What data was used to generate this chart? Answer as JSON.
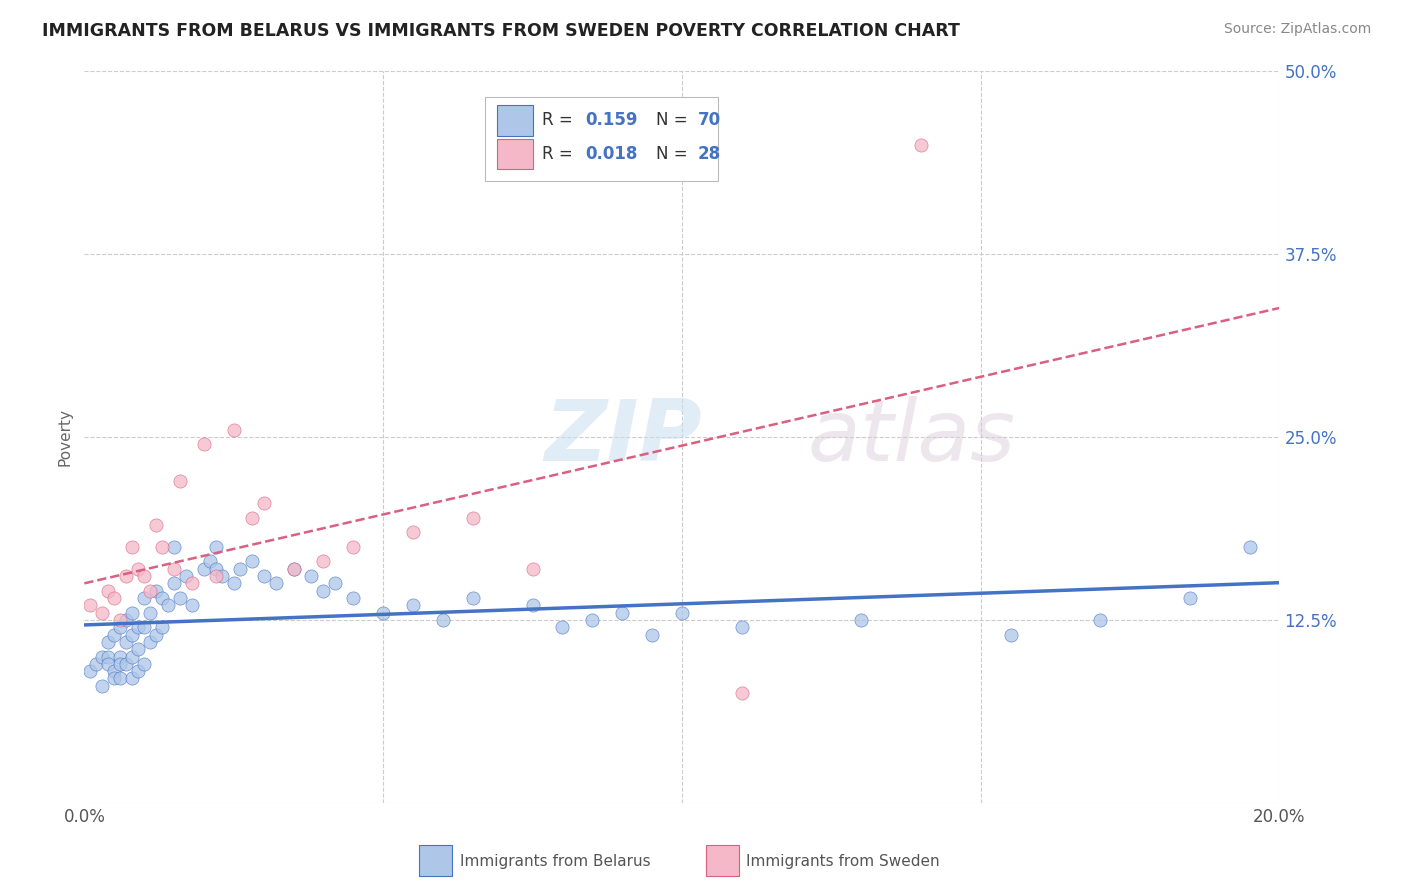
{
  "title": "IMMIGRANTS FROM BELARUS VS IMMIGRANTS FROM SWEDEN POVERTY CORRELATION CHART",
  "source": "Source: ZipAtlas.com",
  "ylabel_label": "Poverty",
  "xlim": [
    0.0,
    0.2
  ],
  "ylim": [
    0.0,
    0.5
  ],
  "xticks": [
    0.0,
    0.05,
    0.1,
    0.15,
    0.2
  ],
  "xticklabels": [
    "0.0%",
    "",
    "",
    "",
    "20.0%"
  ],
  "yticks": [
    0.0,
    0.125,
    0.25,
    0.375,
    0.5
  ],
  "yticklabels": [
    "",
    "12.5%",
    "25.0%",
    "37.5%",
    "50.0%"
  ],
  "color_belarus": "#aec6e8",
  "color_sweden": "#f4b8c8",
  "line_color_belarus": "#4472c4",
  "line_color_sweden": "#d96080",
  "watermark_zip": "ZIP",
  "watermark_atlas": "atlas",
  "background_color": "#ffffff",
  "grid_color": "#cccccc",
  "scatter_size": 90,
  "scatter_alpha": 0.75,
  "belarus_x": [
    0.001,
    0.002,
    0.003,
    0.003,
    0.004,
    0.004,
    0.004,
    0.005,
    0.005,
    0.005,
    0.006,
    0.006,
    0.006,
    0.006,
    0.007,
    0.007,
    0.007,
    0.008,
    0.008,
    0.008,
    0.008,
    0.009,
    0.009,
    0.009,
    0.01,
    0.01,
    0.01,
    0.011,
    0.011,
    0.012,
    0.012,
    0.013,
    0.013,
    0.014,
    0.015,
    0.015,
    0.016,
    0.017,
    0.018,
    0.02,
    0.021,
    0.022,
    0.022,
    0.023,
    0.025,
    0.026,
    0.028,
    0.03,
    0.032,
    0.035,
    0.038,
    0.04,
    0.042,
    0.045,
    0.05,
    0.055,
    0.06,
    0.065,
    0.075,
    0.08,
    0.085,
    0.09,
    0.095,
    0.1,
    0.11,
    0.13,
    0.155,
    0.17,
    0.185,
    0.195
  ],
  "belarus_y": [
    0.09,
    0.095,
    0.1,
    0.08,
    0.1,
    0.11,
    0.095,
    0.115,
    0.09,
    0.085,
    0.12,
    0.1,
    0.095,
    0.085,
    0.11,
    0.125,
    0.095,
    0.13,
    0.115,
    0.1,
    0.085,
    0.12,
    0.105,
    0.09,
    0.14,
    0.12,
    0.095,
    0.13,
    0.11,
    0.145,
    0.115,
    0.14,
    0.12,
    0.135,
    0.175,
    0.15,
    0.14,
    0.155,
    0.135,
    0.16,
    0.165,
    0.16,
    0.175,
    0.155,
    0.15,
    0.16,
    0.165,
    0.155,
    0.15,
    0.16,
    0.155,
    0.145,
    0.15,
    0.14,
    0.13,
    0.135,
    0.125,
    0.14,
    0.135,
    0.12,
    0.125,
    0.13,
    0.115,
    0.13,
    0.12,
    0.125,
    0.115,
    0.125,
    0.14,
    0.175
  ],
  "sweden_x": [
    0.001,
    0.003,
    0.004,
    0.005,
    0.006,
    0.007,
    0.008,
    0.009,
    0.01,
    0.011,
    0.012,
    0.013,
    0.015,
    0.016,
    0.018,
    0.02,
    0.022,
    0.025,
    0.028,
    0.03,
    0.035,
    0.04,
    0.045,
    0.055,
    0.065,
    0.075,
    0.11,
    0.14
  ],
  "sweden_y": [
    0.135,
    0.13,
    0.145,
    0.14,
    0.125,
    0.155,
    0.175,
    0.16,
    0.155,
    0.145,
    0.19,
    0.175,
    0.16,
    0.22,
    0.15,
    0.245,
    0.155,
    0.255,
    0.195,
    0.205,
    0.16,
    0.165,
    0.175,
    0.185,
    0.195,
    0.16,
    0.075,
    0.45
  ]
}
